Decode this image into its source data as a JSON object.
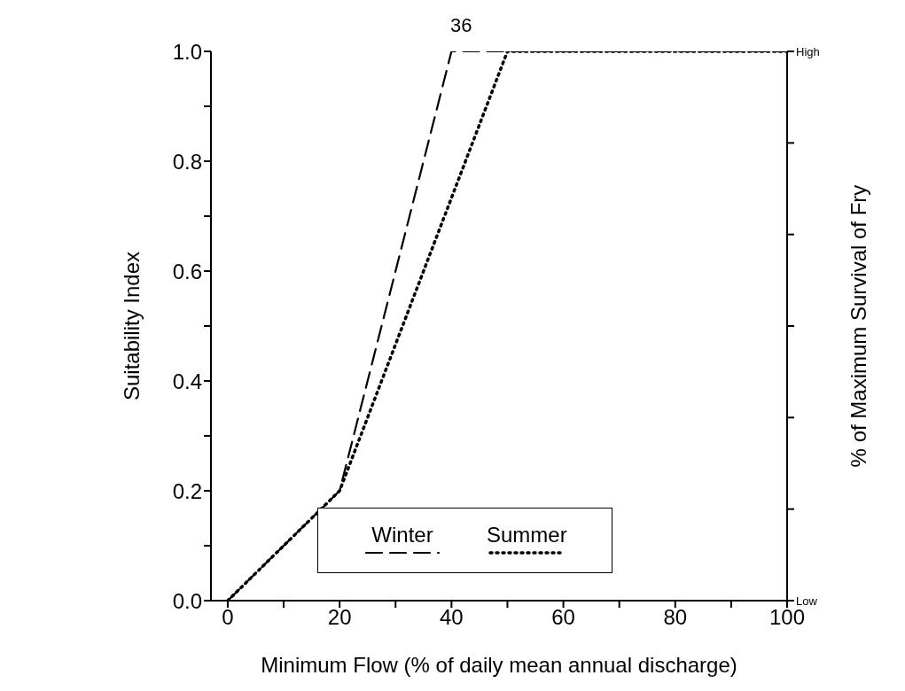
{
  "chart_data": {
    "type": "line",
    "xlabel": "Minimum Flow (% of daily mean annual discharge)",
    "ylabel": "Suitability Index",
    "y2label": "% of Maximum Survival of Fry",
    "annotations": [
      "36"
    ],
    "xlim": [
      -3,
      100
    ],
    "xticks": [
      0,
      {
        "value": 10,
        "label": null
      },
      20,
      {
        "value": 30,
        "label": null
      },
      40,
      {
        "value": 50,
        "label": null
      },
      60,
      {
        "value": 70,
        "label": null
      },
      80,
      {
        "value": 90,
        "label": null
      },
      100
    ],
    "ylim": [
      0,
      1
    ],
    "yticks": [
      {
        "value": 0,
        "label": "0.0"
      },
      {
        "value": 0.1,
        "label": null
      },
      0.2,
      {
        "value": 0.3,
        "label": null
      },
      0.4,
      {
        "value": 0.5,
        "label": null
      },
      0.6,
      {
        "value": 0.7,
        "label": null
      },
      0.8,
      {
        "value": 0.9,
        "label": null
      },
      {
        "value": 1,
        "label": "1.0"
      }
    ],
    "y2_categories": [
      "High",
      null,
      null,
      null,
      null,
      null,
      "Low"
    ],
    "legend": "bottom",
    "marker": "none",
    "series": [
      {
        "name": "Winter",
        "color": "#000000",
        "line_style": "dashed",
        "x": [
          0,
          20,
          40,
          100
        ],
        "values": [
          0,
          0.2,
          1,
          1
        ]
      },
      {
        "name": "Summer",
        "color": "#000000",
        "line_style": "dotted",
        "x": [
          0,
          20,
          50,
          100
        ],
        "values": [
          0,
          0.2,
          1,
          1
        ]
      }
    ]
  }
}
